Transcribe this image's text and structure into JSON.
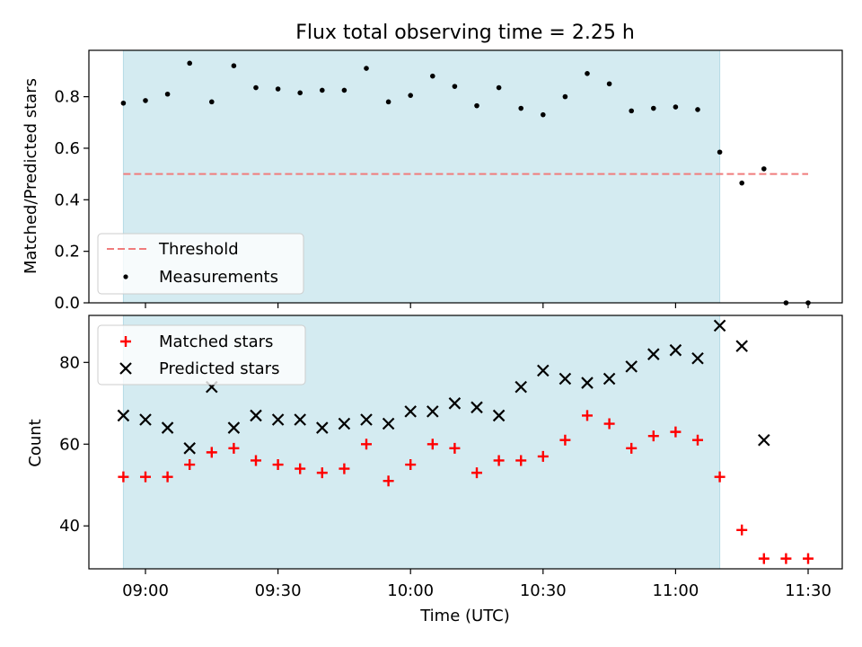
{
  "chart_data": {
    "type": "scatter",
    "title": "Flux total observing time = 2.25 h",
    "xlabel": "Time (UTC)",
    "x_ticks": [
      "09:00",
      "09:30",
      "10:00",
      "10:30",
      "11:00",
      "11:30"
    ],
    "shaded_region": {
      "x_start": "08:55",
      "x_end": "11:10",
      "color": "#d4ebf1"
    },
    "panels": [
      {
        "id": "ratio",
        "ylabel": "Matched/Predicted stars",
        "ylim": [
          0,
          0.98
        ],
        "y_ticks": [
          "0.0",
          "0.2",
          "0.4",
          "0.6",
          "0.8"
        ],
        "legend_position": "lower-left",
        "threshold": {
          "name": "Threshold",
          "y": 0.5,
          "x_range": [
            "08:55",
            "11:30"
          ],
          "color": "#f07c7c",
          "style": "dashed"
        },
        "series": [
          {
            "name": "Measurements",
            "marker": "dot",
            "color": "#000000",
            "x": [
              "08:55",
              "09:00",
              "09:05",
              "09:10",
              "09:15",
              "09:20",
              "09:25",
              "09:30",
              "09:35",
              "09:40",
              "09:45",
              "09:50",
              "09:55",
              "10:00",
              "10:05",
              "10:10",
              "10:15",
              "10:20",
              "10:25",
              "10:30",
              "10:35",
              "10:40",
              "10:45",
              "10:50",
              "10:55",
              "11:00",
              "11:05",
              "11:10",
              "11:15",
              "11:20",
              "11:25",
              "11:30"
            ],
            "y": [
              0.775,
              0.785,
              0.81,
              0.93,
              0.78,
              0.92,
              0.835,
              0.83,
              0.815,
              0.825,
              0.825,
              0.91,
              0.78,
              0.805,
              0.88,
              0.84,
              0.765,
              0.835,
              0.755,
              0.73,
              0.8,
              0.89,
              0.85,
              0.745,
              0.755,
              0.76,
              0.75,
              0.585,
              0.465,
              0.52,
              0.0,
              0.0
            ]
          }
        ]
      },
      {
        "id": "counts",
        "ylabel": "Count",
        "ylim": [
          29.5,
          91.5
        ],
        "y_ticks": [
          "40",
          "60",
          "80"
        ],
        "legend_position": "upper-left",
        "series": [
          {
            "name": "Matched stars",
            "marker": "plus",
            "color": "#ff0000",
            "x": [
              "08:55",
              "09:00",
              "09:05",
              "09:10",
              "09:15",
              "09:20",
              "09:25",
              "09:30",
              "09:35",
              "09:40",
              "09:45",
              "09:50",
              "09:55",
              "10:00",
              "10:05",
              "10:10",
              "10:15",
              "10:20",
              "10:25",
              "10:30",
              "10:35",
              "10:40",
              "10:45",
              "10:50",
              "10:55",
              "11:00",
              "11:05",
              "11:10",
              "11:15",
              "11:20",
              "11:25",
              "11:30"
            ],
            "y": [
              52,
              52,
              52,
              55,
              58,
              59,
              56,
              55,
              54,
              53,
              54,
              60,
              51,
              55,
              60,
              59,
              53,
              56,
              56,
              57,
              61,
              67,
              65,
              59,
              62,
              63,
              61,
              52,
              39,
              32,
              32,
              32
            ]
          },
          {
            "name": "Predicted stars",
            "marker": "x",
            "color": "#000000",
            "x": [
              "08:55",
              "09:00",
              "09:05",
              "09:10",
              "09:15",
              "09:20",
              "09:25",
              "09:30",
              "09:35",
              "09:40",
              "09:45",
              "09:50",
              "09:55",
              "10:00",
              "10:05",
              "10:10",
              "10:15",
              "10:20",
              "10:25",
              "10:30",
              "10:35",
              "10:40",
              "10:45",
              "10:50",
              "10:55",
              "11:00",
              "11:05",
              "11:10",
              "11:15",
              "11:20"
            ],
            "y": [
              67,
              66,
              64,
              59,
              74,
              64,
              67,
              66,
              66,
              64,
              65,
              66,
              65,
              68,
              68,
              70,
              69,
              67,
              74,
              78,
              76,
              75,
              76,
              79,
              82,
              83,
              81,
              89,
              84,
              61
            ]
          }
        ]
      }
    ]
  }
}
